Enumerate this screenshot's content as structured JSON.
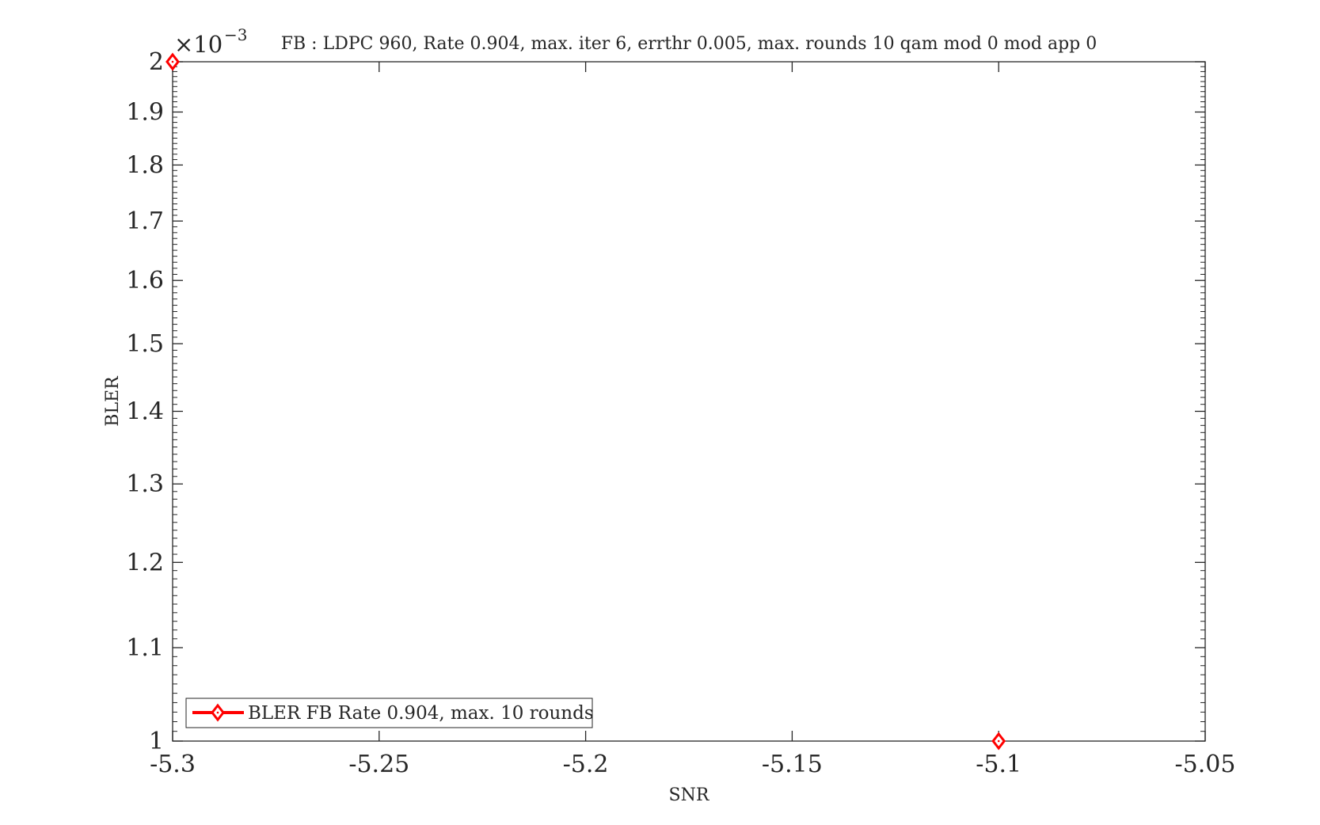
{
  "chart_data": {
    "type": "line",
    "title": "FB : LDPC 960, Rate 0.904, max. iter 6, errthr 0.005, max. rounds 10 qam mod 0 mod app 0",
    "xlabel": "SNR",
    "ylabel": "BLER",
    "y_scale": "log",
    "y_multiplier": {
      "base": "×10",
      "exponent": "−3"
    },
    "xlim": [
      -5.3,
      -5.05
    ],
    "ylim": [
      1,
      2
    ],
    "x_ticks": [
      -5.3,
      -5.25,
      -5.2,
      -5.15,
      -5.1,
      -5.05
    ],
    "x_tick_labels": [
      "-5.3",
      "-5.25",
      "-5.2",
      "-5.15",
      "-5.1",
      "-5.05"
    ],
    "y_ticks": [
      1,
      1.1,
      1.2,
      1.3,
      1.4,
      1.5,
      1.6,
      1.7,
      1.8,
      1.9,
      2
    ],
    "y_tick_labels": [
      "1",
      "1.1",
      "1.2",
      "1.3",
      "1.4",
      "1.5",
      "1.6",
      "1.7",
      "1.8",
      "1.9",
      "2"
    ],
    "grid": false,
    "legend_position": "bottom-left",
    "series": [
      {
        "name": "BLER FB Rate 0.904, max. 10 rounds",
        "color": "#ff0000",
        "marker": "diamond",
        "x": [
          -5.3,
          -5.1
        ],
        "y": [
          2,
          1
        ]
      }
    ]
  }
}
